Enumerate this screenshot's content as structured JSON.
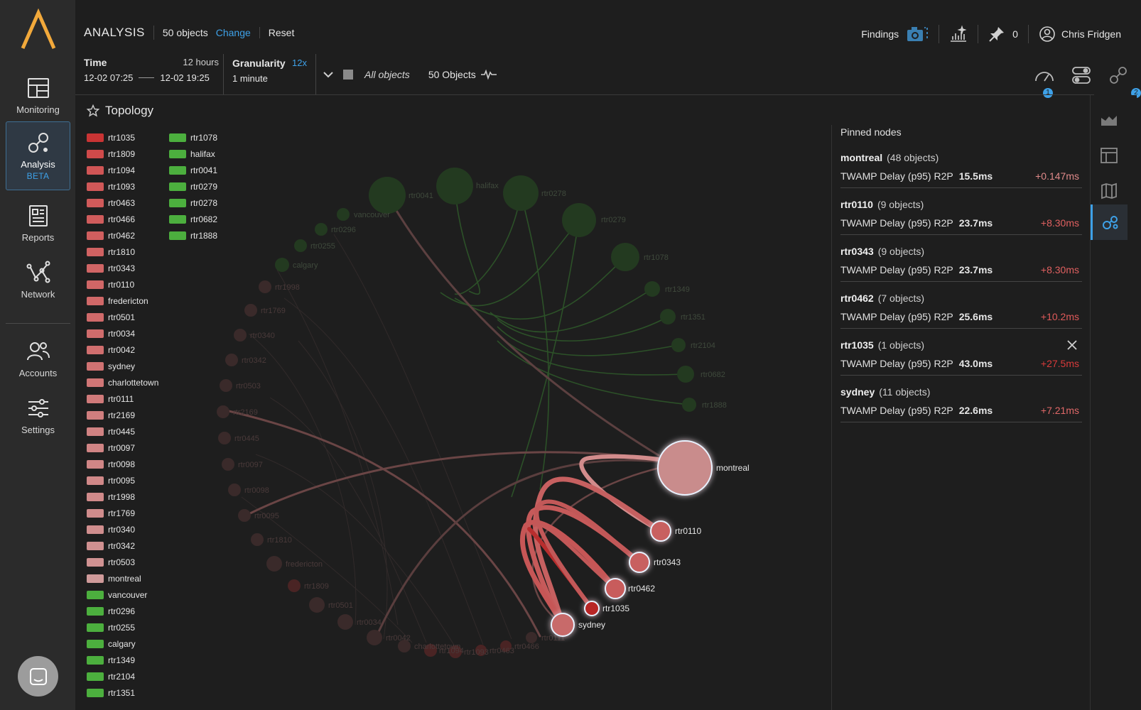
{
  "nav": {
    "items": [
      {
        "label": "Monitoring",
        "icon": "dashboard-icon"
      },
      {
        "label": "Analysis",
        "badge": "BETA",
        "icon": "analysis-icon"
      },
      {
        "label": "Reports",
        "icon": "reports-icon"
      },
      {
        "label": "Network",
        "icon": "network-icon"
      },
      {
        "label": "Accounts",
        "icon": "accounts-icon"
      },
      {
        "label": "Settings",
        "icon": "settings-icon"
      }
    ]
  },
  "header": {
    "title": "ANALYSIS",
    "objects": "50 objects",
    "change": "Change",
    "reset": "Reset",
    "findings": "Findings",
    "pins_count": "0",
    "user": "Chris Fridgen",
    "time_label": "Time",
    "time_span": "12 hours",
    "time_start": "12-02 07:25",
    "time_end": "12-02 19:25",
    "granularity_label": "Granularity",
    "granularity_mult": "12x",
    "granularity_value": "1 minute",
    "filter_text": "All objects",
    "object_count": "50 Objects",
    "badge1": "1",
    "badge2": "2"
  },
  "topology": {
    "title": "Topology",
    "legend_col1": [
      {
        "label": "rtr1035",
        "color": "#c93434"
      },
      {
        "label": "rtr1809",
        "color": "#cf4a4a"
      },
      {
        "label": "rtr1094",
        "color": "#d05555"
      },
      {
        "label": "rtr1093",
        "color": "#d05858"
      },
      {
        "label": "rtr0463",
        "color": "#d05a5a"
      },
      {
        "label": "rtr0466",
        "color": "#d05c5c"
      },
      {
        "label": "rtr0462",
        "color": "#d05e5e"
      },
      {
        "label": "rtr1810",
        "color": "#d06262"
      },
      {
        "label": "rtr0343",
        "color": "#d06565"
      },
      {
        "label": "rtr0110",
        "color": "#d06666"
      },
      {
        "label": "fredericton",
        "color": "#d06868"
      },
      {
        "label": "rtr0501",
        "color": "#d06a6a"
      },
      {
        "label": "rtr0034",
        "color": "#d06c6c"
      },
      {
        "label": "rtr0042",
        "color": "#d06e6e"
      },
      {
        "label": "sydney",
        "color": "#d07272"
      },
      {
        "label": "charlottetown",
        "color": "#d07676"
      },
      {
        "label": "rtr0111",
        "color": "#d07a7a"
      },
      {
        "label": "rtr2169",
        "color": "#d07e7e"
      },
      {
        "label": "rtr0445",
        "color": "#d08282"
      },
      {
        "label": "rtr0097",
        "color": "#d08484"
      },
      {
        "label": "rtr0098",
        "color": "#d08686"
      },
      {
        "label": "rtr0095",
        "color": "#d08888"
      },
      {
        "label": "rtr1998",
        "color": "#d08a8a"
      },
      {
        "label": "rtr1769",
        "color": "#d08c8c"
      },
      {
        "label": "rtr0340",
        "color": "#d08e8e"
      },
      {
        "label": "rtr0342",
        "color": "#d09090"
      },
      {
        "label": "rtr0503",
        "color": "#d09292"
      },
      {
        "label": "montreal",
        "color": "#cf9a9a"
      },
      {
        "label": "vancouver",
        "color": "#4caf3e"
      },
      {
        "label": "rtr0296",
        "color": "#4caf3e"
      },
      {
        "label": "rtr0255",
        "color": "#4caf3e"
      },
      {
        "label": "calgary",
        "color": "#4caf3e"
      },
      {
        "label": "rtr1349",
        "color": "#4caf3e"
      },
      {
        "label": "rtr2104",
        "color": "#4caf3e"
      },
      {
        "label": "rtr1351",
        "color": "#4caf3e"
      }
    ],
    "legend_col2": [
      {
        "label": "rtr1078",
        "color": "#4caf3e"
      },
      {
        "label": "halifax",
        "color": "#4caf3e"
      },
      {
        "label": "rtr0041",
        "color": "#4caf3e"
      },
      {
        "label": "rtr0279",
        "color": "#4caf3e"
      },
      {
        "label": "rtr0278",
        "color": "#4caf3e"
      },
      {
        "label": "rtr0682",
        "color": "#4caf3e"
      },
      {
        "label": "rtr1888",
        "color": "#4caf3e"
      }
    ],
    "graph_labels": {
      "montreal": "montreal",
      "rtr0110": "rtr0110",
      "rtr0343": "rtr0343",
      "rtr0462": "rtr0462",
      "rtr1035": "rtr1035",
      "sydney": "sydney",
      "rtr0041": "rtr0041",
      "halifax": "halifax",
      "rtr0278": "rtr0278",
      "rtr0279": "rtr0279",
      "rtr1078": "rtr1078",
      "rtr1349": "rtr1349",
      "rtr1351": "rtr1351",
      "rtr2104": "rtr2104",
      "rtr0682": "rtr0682",
      "rtr1888": "rtr1888",
      "vancouver": "vancouver",
      "rtr0296": "rtr0296",
      "rtr0255": "rtr0255",
      "calgary": "calgary",
      "rtr1998": "rtr1998",
      "rtr1769": "rtr1769",
      "rtr0340": "rtr0340",
      "rtr0342": "rtr0342",
      "rtr0503": "rtr0503",
      "rtr2169": "rtr2169",
      "rtr0445": "rtr0445",
      "rtr0097": "rtr0097",
      "rtr0098": "rtr0098",
      "rtr0095": "rtr0095",
      "rtr1810": "rtr1810",
      "fredericton": "fredericton",
      "rtr1809": "rtr1809",
      "rtr0501": "rtr0501",
      "rtr0034": "rtr0034",
      "rtr0042": "rtr0042",
      "charlottetown": "charlottetown",
      "rtr1094": "rtr1094",
      "rtr1093": "rtr1093",
      "rtr0463": "rtr0463",
      "rtr0466": "rtr0466",
      "rtr0111": "rtr0111"
    }
  },
  "pinned": {
    "title": "Pinned nodes",
    "items": [
      {
        "name": "montreal",
        "count": "(48 objects)",
        "metric": "TWAMP Delay (p95) R2P",
        "value": "15.5ms",
        "delta": "+0.147ms",
        "delta_color": "#e08a8a"
      },
      {
        "name": "rtr0110",
        "count": "(9 objects)",
        "metric": "TWAMP Delay (p95) R2P",
        "value": "23.7ms",
        "delta": "+8.30ms",
        "delta_color": "#e06060"
      },
      {
        "name": "rtr0343",
        "count": "(9 objects)",
        "metric": "TWAMP Delay (p95) R2P",
        "value": "23.7ms",
        "delta": "+8.30ms",
        "delta_color": "#e06060"
      },
      {
        "name": "rtr0462",
        "count": "(7 objects)",
        "metric": "TWAMP Delay (p95) R2P",
        "value": "25.6ms",
        "delta": "+10.2ms",
        "delta_color": "#e05a5a"
      },
      {
        "name": "rtr1035",
        "count": "(1 objects)",
        "metric": "TWAMP Delay (p95) R2P",
        "value": "43.0ms",
        "delta": "+27.5ms",
        "delta_color": "#d83a3a"
      },
      {
        "name": "sydney",
        "count": "(11 objects)",
        "metric": "TWAMP Delay (p95) R2P",
        "value": "22.6ms",
        "delta": "+7.21ms",
        "delta_color": "#e06868"
      }
    ]
  }
}
